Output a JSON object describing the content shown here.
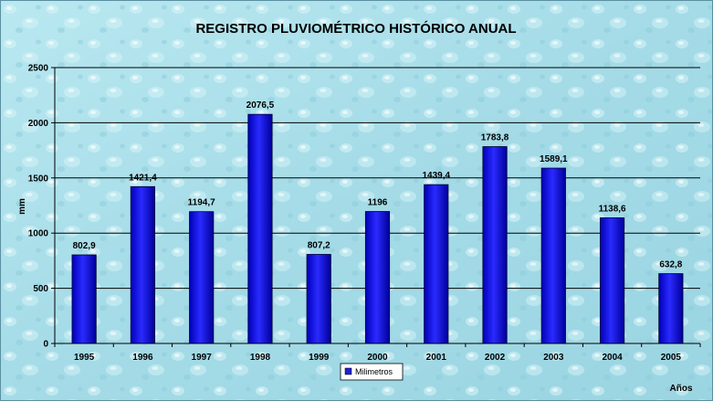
{
  "chart_data": {
    "type": "bar",
    "title": "REGISTRO PLUVIOMÉTRICO HISTÓRICO ANUAL",
    "xlabel": "Años",
    "ylabel": "mm",
    "categories": [
      "1995",
      "1996",
      "1997",
      "1998",
      "1999",
      "2000",
      "2001",
      "2002",
      "2003",
      "2004",
      "2005"
    ],
    "series": [
      {
        "name": "Milimetros",
        "values": [
          802.9,
          1421.4,
          1194.7,
          2076.5,
          807.2,
          1196,
          1439.4,
          1783.8,
          1589.1,
          1138.6,
          632.8
        ],
        "labels": [
          "802,9",
          "1421,4",
          "1194,7",
          "2076,5",
          "807,2",
          "1196",
          "1439,4",
          "1783,8",
          "1589,1",
          "1138,6",
          "632,8"
        ]
      }
    ],
    "ylim": [
      0,
      2500
    ],
    "yticks": [
      0,
      500,
      1000,
      1500,
      2000,
      2500
    ],
    "grid": true,
    "legend": "bottom-center",
    "colors": {
      "bar_top": "#3a3aff",
      "bar_bottom": "#0000a8",
      "background": "#a9dfe9",
      "gridline": "#000000",
      "legend_swatch": "#1f1fd6"
    }
  }
}
